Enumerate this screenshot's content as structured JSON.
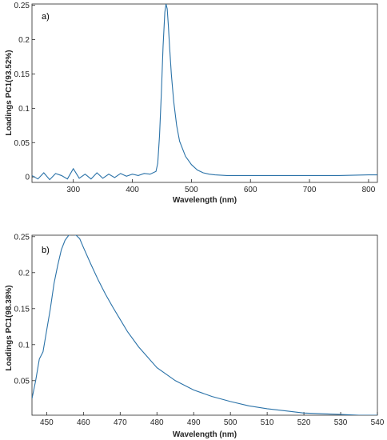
{
  "colors": {
    "line": "#2a72a8",
    "axis": "#262626",
    "background": "#ffffff"
  },
  "chart_data": [
    {
      "type": "line",
      "panel_label": "a)",
      "xlabel": "Wavelength (nm)",
      "ylabel": "Loadings PC1(93.52%)",
      "xlim": [
        230,
        815
      ],
      "ylim": [
        -0.008,
        0.252
      ],
      "xticks": [
        300,
        400,
        500,
        600,
        700,
        800
      ],
      "yticks": [
        0,
        0.05,
        0.1,
        0.15,
        0.2,
        0.25
      ],
      "ytick_labels": [
        "0",
        "0.05",
        "0.1",
        "0.15",
        "0.2",
        "0.25"
      ],
      "grid": false,
      "series": [
        {
          "x": [
            230,
            240,
            250,
            260,
            270,
            280,
            290,
            300,
            310,
            320,
            330,
            340,
            350,
            360,
            370,
            380,
            390,
            400,
            410,
            420,
            430,
            440,
            443,
            446,
            449,
            452,
            455,
            457,
            459,
            461,
            463,
            466,
            470,
            475,
            480,
            490,
            500,
            510,
            520,
            530,
            540,
            560,
            600,
            650,
            700,
            750,
            800,
            815
          ],
          "y": [
            0.002,
            -0.003,
            0.006,
            -0.004,
            0.005,
            0.002,
            -0.003,
            0.012,
            -0.002,
            0.004,
            -0.003,
            0.006,
            -0.002,
            0.004,
            -0.001,
            0.005,
            0.001,
            0.004,
            0.002,
            0.005,
            0.004,
            0.008,
            0.02,
            0.06,
            0.12,
            0.19,
            0.24,
            0.252,
            0.245,
            0.22,
            0.19,
            0.15,
            0.11,
            0.075,
            0.052,
            0.03,
            0.018,
            0.01,
            0.006,
            0.004,
            0.003,
            0.002,
            0.002,
            0.002,
            0.002,
            0.002,
            0.003,
            0.003
          ]
        }
      ]
    },
    {
      "type": "line",
      "panel_label": "b)",
      "xlabel": "Wavelength (nm)",
      "ylabel": "Loadings PC1(98.38%)",
      "xlim": [
        446,
        540
      ],
      "ylim": [
        0.002,
        0.252
      ],
      "xticks": [
        450,
        460,
        470,
        480,
        490,
        500,
        510,
        520,
        530,
        540
      ],
      "yticks": [
        0.05,
        0.1,
        0.15,
        0.2,
        0.25
      ],
      "ytick_labels": [
        "0.05",
        "0.1",
        "0.15",
        "0.2",
        "0.25"
      ],
      "grid": false,
      "series": [
        {
          "x": [
            446,
            447,
            448,
            449,
            450,
            451,
            452,
            453,
            454,
            455,
            456,
            457,
            458,
            459,
            460,
            462,
            464,
            466,
            468,
            470,
            472,
            475,
            480,
            485,
            490,
            495,
            500,
            505,
            510,
            515,
            520,
            525,
            530,
            535,
            540
          ],
          "y": [
            0.025,
            0.05,
            0.08,
            0.09,
            0.12,
            0.15,
            0.185,
            0.21,
            0.232,
            0.245,
            0.252,
            0.253,
            0.252,
            0.247,
            0.235,
            0.212,
            0.19,
            0.17,
            0.152,
            0.135,
            0.118,
            0.097,
            0.068,
            0.05,
            0.037,
            0.028,
            0.021,
            0.015,
            0.011,
            0.008,
            0.005,
            0.004,
            0.003,
            0.002,
            0.002
          ]
        }
      ]
    }
  ]
}
